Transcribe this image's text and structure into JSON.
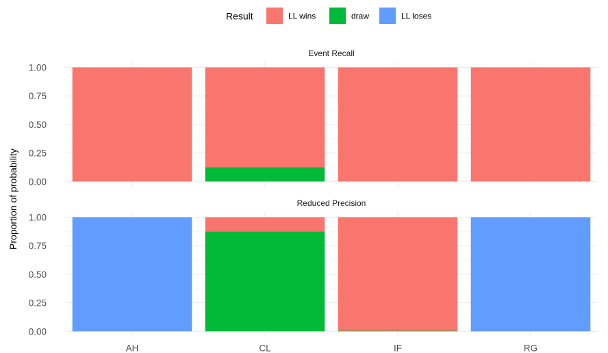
{
  "chart_data": {
    "type": "bar",
    "stacked": true,
    "legend": {
      "title": "Result",
      "position": "top",
      "entries": [
        {
          "name": "LL wins",
          "color": "#F8766D"
        },
        {
          "name": "draw",
          "color": "#00BA38"
        },
        {
          "name": "LL loses",
          "color": "#619CFF"
        }
      ]
    },
    "ylabel": "Proportion of probability",
    "xlabel": "",
    "categories": [
      "AH",
      "CL",
      "IF",
      "RG"
    ],
    "ylim": [
      0,
      1
    ],
    "yticks": [
      "0.00",
      "0.25",
      "0.50",
      "0.75",
      "1.00"
    ],
    "grid": true,
    "panels": [
      {
        "title": "Event Recall",
        "series": [
          {
            "name": "LL wins",
            "values": [
              1.0,
              0.875,
              1.0,
              1.0
            ]
          },
          {
            "name": "draw",
            "values": [
              0.0,
              0.125,
              0.0,
              0.0
            ]
          },
          {
            "name": "LL loses",
            "values": [
              0.0,
              0.0,
              0.0,
              0.0
            ]
          }
        ]
      },
      {
        "title": "Reduced Precision",
        "series": [
          {
            "name": "LL wins",
            "values": [
              0.0,
              0.125,
              0.995,
              0.0
            ]
          },
          {
            "name": "draw",
            "values": [
              0.0,
              0.875,
              0.005,
              0.0
            ]
          },
          {
            "name": "LL loses",
            "values": [
              1.0,
              0.0,
              0.0,
              1.0
            ]
          }
        ]
      }
    ]
  }
}
